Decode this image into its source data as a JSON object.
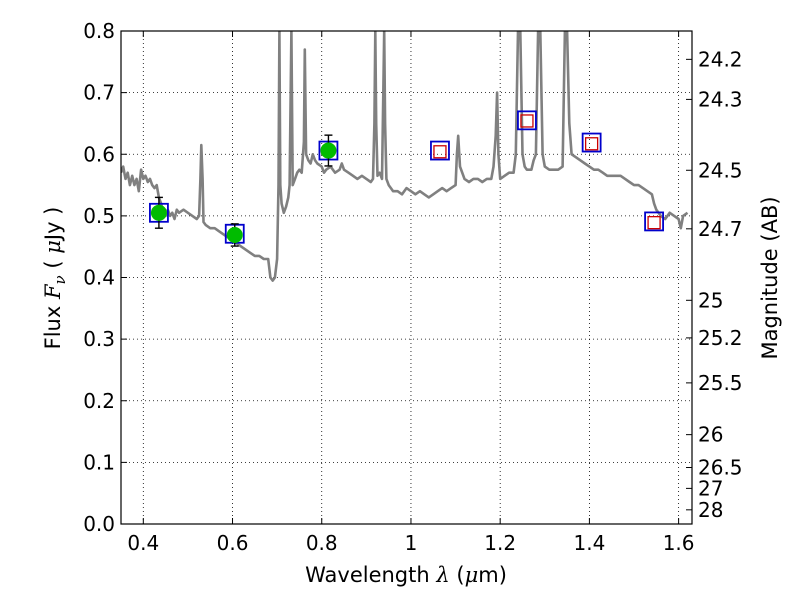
{
  "chart_data": {
    "type": "line",
    "xlabel": "Wavelength",
    "xlabel_symbol": "λ",
    "xlabel_unit_prefix": "(",
    "xlabel_unit_mu": "μ",
    "xlabel_unit_suffix": "m)",
    "ylabel": "Flux",
    "ylabel_symbol_base": "F",
    "ylabel_symbol_sub": "ν",
    "ylabel_unit_prefix": "( ",
    "ylabel_unit_mu": "μ",
    "ylabel_unit_suffix": "Jy )",
    "y2label": "Magnitude (AB)",
    "xlim": [
      0.35,
      1.63
    ],
    "ylim": [
      0.0,
      0.8
    ],
    "grid": true,
    "xticks": [
      0.4,
      0.6,
      0.8,
      1.0,
      1.2,
      1.4,
      1.6
    ],
    "xtick_labels": [
      "0.4",
      "0.6",
      "0.8",
      "1",
      "1.2",
      "1.4",
      "1.6"
    ],
    "yticks": [
      0.0,
      0.1,
      0.2,
      0.3,
      0.4,
      0.5,
      0.6,
      0.7,
      0.8
    ],
    "ytick_labels": [
      "0.0",
      "0.1",
      "0.2",
      "0.3",
      "0.4",
      "0.5",
      "0.6",
      "0.7",
      "0.8"
    ],
    "y2ticks": [
      {
        "flux": 0.754,
        "label": "24.2"
      },
      {
        "flux": 0.689,
        "label": "24.3"
      },
      {
        "flux": 0.574,
        "label": "24.5"
      },
      {
        "flux": 0.479,
        "label": "24.7"
      },
      {
        "flux": 0.363,
        "label": "25"
      },
      {
        "flux": 0.302,
        "label": "25.2"
      },
      {
        "flux": 0.229,
        "label": "25.5"
      },
      {
        "flux": 0.145,
        "label": "26"
      },
      {
        "flux": 0.0917,
        "label": "26.5"
      },
      {
        "flux": 0.0578,
        "label": "27"
      },
      {
        "flux": 0.023,
        "label": "28"
      }
    ],
    "series": [
      {
        "kind": "model-spectrum",
        "color": "#808080",
        "points": [
          [
            0.35,
            0.57
          ],
          [
            0.355,
            0.58
          ],
          [
            0.36,
            0.56
          ],
          [
            0.365,
            0.57
          ],
          [
            0.37,
            0.55
          ],
          [
            0.375,
            0.565
          ],
          [
            0.38,
            0.55
          ],
          [
            0.385,
            0.56
          ],
          [
            0.39,
            0.54
          ],
          [
            0.395,
            0.575
          ],
          [
            0.4,
            0.56
          ],
          [
            0.405,
            0.565
          ],
          [
            0.41,
            0.555
          ],
          [
            0.415,
            0.56
          ],
          [
            0.42,
            0.55
          ],
          [
            0.425,
            0.545
          ],
          [
            0.43,
            0.55
          ],
          [
            0.435,
            0.53
          ],
          [
            0.44,
            0.52
          ],
          [
            0.445,
            0.505
          ],
          [
            0.45,
            0.5
          ],
          [
            0.455,
            0.51
          ],
          [
            0.46,
            0.5
          ],
          [
            0.465,
            0.505
          ],
          [
            0.47,
            0.495
          ],
          [
            0.475,
            0.51
          ],
          [
            0.48,
            0.505
          ],
          [
            0.49,
            0.51
          ],
          [
            0.5,
            0.505
          ],
          [
            0.51,
            0.5
          ],
          [
            0.52,
            0.495
          ],
          [
            0.525,
            0.5
          ],
          [
            0.528,
            0.56
          ],
          [
            0.53,
            0.615
          ],
          [
            0.533,
            0.56
          ],
          [
            0.535,
            0.49
          ],
          [
            0.54,
            0.485
          ],
          [
            0.55,
            0.48
          ],
          [
            0.56,
            0.48
          ],
          [
            0.57,
            0.475
          ],
          [
            0.58,
            0.47
          ],
          [
            0.59,
            0.465
          ],
          [
            0.6,
            0.46
          ],
          [
            0.61,
            0.455
          ],
          [
            0.62,
            0.45
          ],
          [
            0.63,
            0.445
          ],
          [
            0.64,
            0.44
          ],
          [
            0.65,
            0.435
          ],
          [
            0.66,
            0.435
          ],
          [
            0.67,
            0.43
          ],
          [
            0.68,
            0.43
          ],
          [
            0.685,
            0.4
          ],
          [
            0.69,
            0.395
          ],
          [
            0.695,
            0.4
          ],
          [
            0.7,
            0.43
          ],
          [
            0.703,
            0.55
          ],
          [
            0.705,
            0.8
          ],
          [
            0.707,
            0.55
          ],
          [
            0.71,
            0.52
          ],
          [
            0.715,
            0.505
          ],
          [
            0.72,
            0.515
          ],
          [
            0.725,
            0.53
          ],
          [
            0.728,
            0.55
          ],
          [
            0.732,
            0.8
          ],
          [
            0.735,
            0.55
          ],
          [
            0.74,
            0.56
          ],
          [
            0.745,
            0.57
          ],
          [
            0.75,
            0.575
          ],
          [
            0.755,
            0.57
          ],
          [
            0.76,
            0.62
          ],
          [
            0.762,
            0.77
          ],
          [
            0.765,
            0.6
          ],
          [
            0.77,
            0.59
          ],
          [
            0.775,
            0.585
          ],
          [
            0.78,
            0.6
          ],
          [
            0.785,
            0.59
          ],
          [
            0.79,
            0.585
          ],
          [
            0.8,
            0.58
          ],
          [
            0.805,
            0.57
          ],
          [
            0.81,
            0.575
          ],
          [
            0.82,
            0.58
          ],
          [
            0.825,
            0.575
          ],
          [
            0.83,
            0.57
          ],
          [
            0.84,
            0.575
          ],
          [
            0.845,
            0.585
          ],
          [
            0.85,
            0.575
          ],
          [
            0.86,
            0.57
          ],
          [
            0.87,
            0.565
          ],
          [
            0.88,
            0.56
          ],
          [
            0.89,
            0.565
          ],
          [
            0.9,
            0.56
          ],
          [
            0.91,
            0.555
          ],
          [
            0.915,
            0.56
          ],
          [
            0.918,
            0.65
          ],
          [
            0.92,
            0.8
          ],
          [
            0.922,
            0.65
          ],
          [
            0.925,
            0.565
          ],
          [
            0.93,
            0.57
          ],
          [
            0.935,
            0.56
          ],
          [
            0.938,
            0.7
          ],
          [
            0.94,
            0.8
          ],
          [
            0.942,
            0.65
          ],
          [
            0.945,
            0.56
          ],
          [
            0.95,
            0.55
          ],
          [
            0.955,
            0.545
          ],
          [
            0.96,
            0.54
          ],
          [
            0.97,
            0.54
          ],
          [
            0.98,
            0.535
          ],
          [
            0.99,
            0.545
          ],
          [
            1.0,
            0.54
          ],
          [
            1.01,
            0.535
          ],
          [
            1.02,
            0.54
          ],
          [
            1.03,
            0.535
          ],
          [
            1.04,
            0.53
          ],
          [
            1.05,
            0.535
          ],
          [
            1.06,
            0.54
          ],
          [
            1.07,
            0.545
          ],
          [
            1.08,
            0.54
          ],
          [
            1.09,
            0.545
          ],
          [
            1.1,
            0.55
          ],
          [
            1.103,
            0.6
          ],
          [
            1.106,
            0.63
          ],
          [
            1.11,
            0.58
          ],
          [
            1.12,
            0.56
          ],
          [
            1.13,
            0.555
          ],
          [
            1.14,
            0.56
          ],
          [
            1.15,
            0.56
          ],
          [
            1.16,
            0.555
          ],
          [
            1.17,
            0.56
          ],
          [
            1.18,
            0.56
          ],
          [
            1.185,
            0.58
          ],
          [
            1.19,
            0.63
          ],
          [
            1.193,
            0.7
          ],
          [
            1.196,
            0.6
          ],
          [
            1.2,
            0.56
          ],
          [
            1.21,
            0.565
          ],
          [
            1.22,
            0.57
          ],
          [
            1.23,
            0.57
          ],
          [
            1.235,
            0.6
          ],
          [
            1.24,
            0.8
          ],
          [
            1.245,
            0.8
          ],
          [
            1.25,
            0.6
          ],
          [
            1.255,
            0.58
          ],
          [
            1.26,
            0.575
          ],
          [
            1.27,
            0.575
          ],
          [
            1.275,
            0.59
          ],
          [
            1.28,
            0.6
          ],
          [
            1.285,
            0.8
          ],
          [
            1.29,
            0.8
          ],
          [
            1.295,
            0.6
          ],
          [
            1.3,
            0.58
          ],
          [
            1.31,
            0.575
          ],
          [
            1.32,
            0.575
          ],
          [
            1.33,
            0.575
          ],
          [
            1.34,
            0.58
          ],
          [
            1.345,
            0.8
          ],
          [
            1.35,
            0.8
          ],
          [
            1.355,
            0.65
          ],
          [
            1.36,
            0.6
          ],
          [
            1.37,
            0.595
          ],
          [
            1.38,
            0.59
          ],
          [
            1.39,
            0.585
          ],
          [
            1.4,
            0.58
          ],
          [
            1.41,
            0.575
          ],
          [
            1.42,
            0.575
          ],
          [
            1.43,
            0.57
          ],
          [
            1.44,
            0.565
          ],
          [
            1.45,
            0.565
          ],
          [
            1.46,
            0.565
          ],
          [
            1.47,
            0.565
          ],
          [
            1.48,
            0.56
          ],
          [
            1.49,
            0.555
          ],
          [
            1.5,
            0.55
          ],
          [
            1.51,
            0.55
          ],
          [
            1.52,
            0.545
          ],
          [
            1.53,
            0.54
          ],
          [
            1.54,
            0.535
          ],
          [
            1.545,
            0.52
          ],
          [
            1.55,
            0.51
          ],
          [
            1.56,
            0.5
          ],
          [
            1.57,
            0.495
          ],
          [
            1.58,
            0.505
          ],
          [
            1.59,
            0.5
          ],
          [
            1.6,
            0.495
          ],
          [
            1.605,
            0.48
          ],
          [
            1.61,
            0.5
          ],
          [
            1.62,
            0.505
          ]
        ]
      },
      {
        "kind": "model-photometry",
        "marker": "blue-open-square",
        "color": "#0000cc",
        "points": [
          [
            0.435,
            0.505
          ],
          [
            0.605,
            0.471
          ],
          [
            0.815,
            0.606
          ],
          [
            1.065,
            0.606
          ],
          [
            1.26,
            0.655
          ],
          [
            1.405,
            0.619
          ],
          [
            1.545,
            0.491
          ]
        ]
      },
      {
        "kind": "upper-limit-photometry",
        "marker": "red-open-square",
        "color": "#cc0000",
        "points": [
          [
            1.065,
            0.604
          ],
          [
            1.26,
            0.654
          ],
          [
            1.405,
            0.617
          ],
          [
            1.545,
            0.489
          ]
        ]
      },
      {
        "kind": "observed-photometry",
        "marker": "green-circle",
        "color": "#00bb00",
        "points": [
          [
            0.435,
            0.505
          ],
          [
            0.605,
            0.469
          ],
          [
            0.815,
            0.606
          ]
        ],
        "errors": [
          0.025,
          0.018,
          0.025
        ]
      }
    ]
  }
}
